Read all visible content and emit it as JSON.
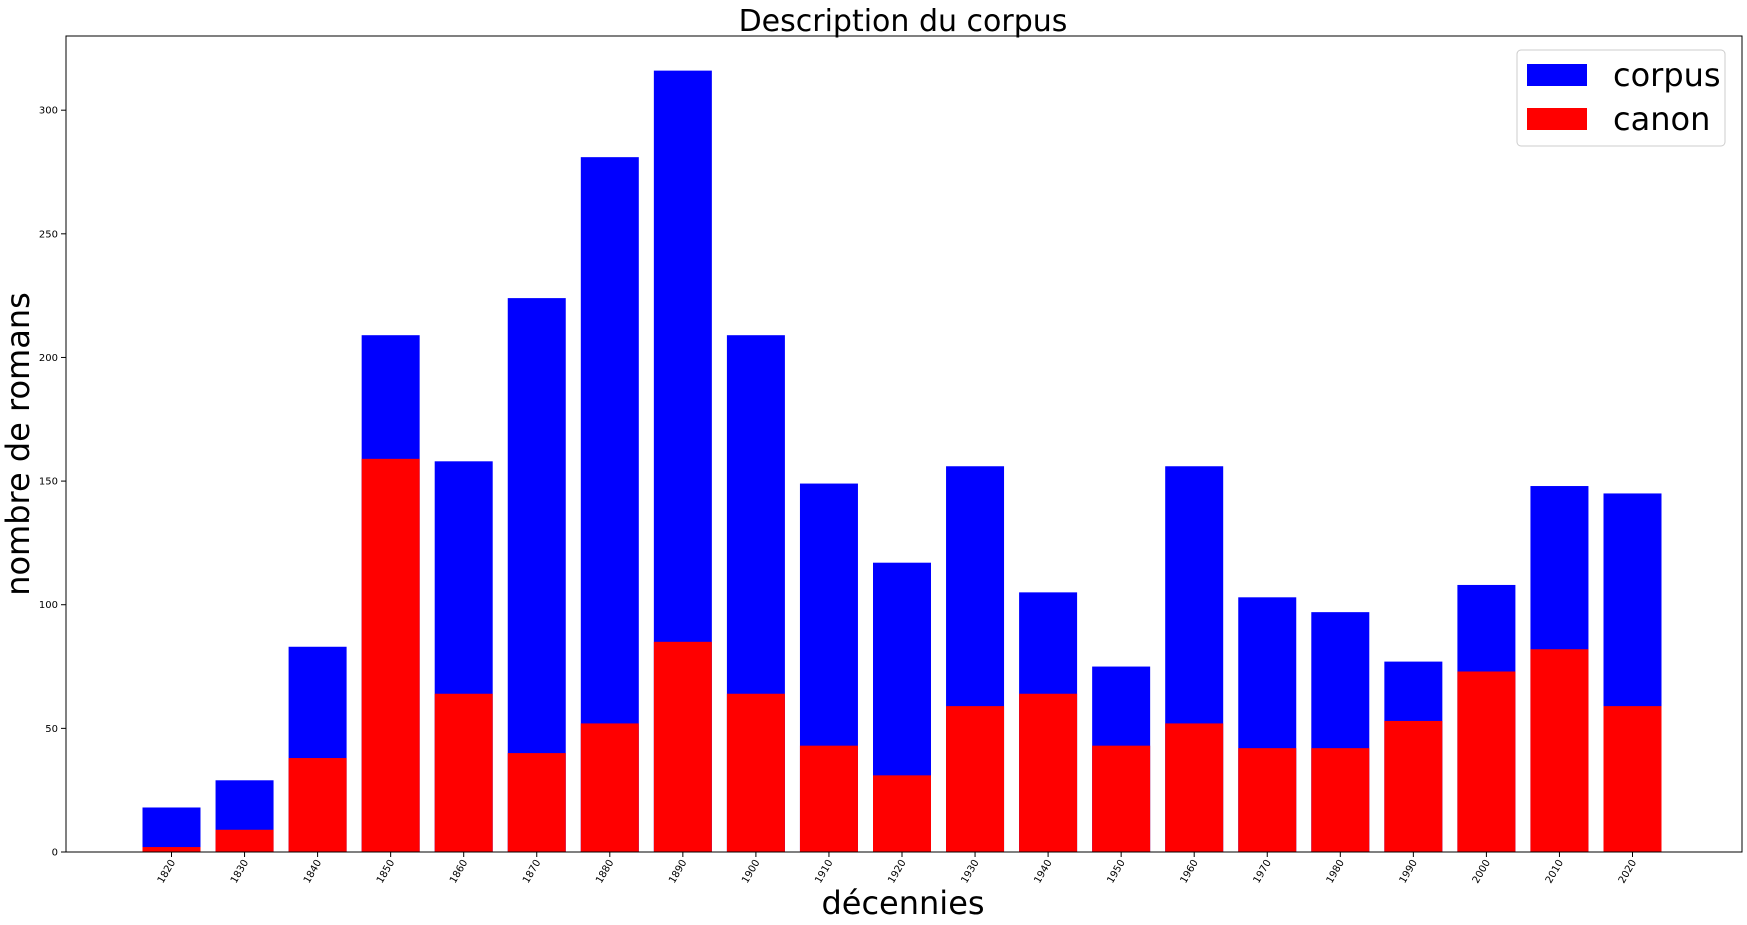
{
  "chart_data": {
    "type": "bar",
    "stacking": "overlay",
    "title": "Description du corpus",
    "xlabel": "décennies",
    "ylabel": "nombre de romans",
    "ylim": [
      0,
      330
    ],
    "yticks": [
      0,
      50,
      100,
      150,
      200,
      250,
      300
    ],
    "categories": [
      "1820",
      "1830",
      "1840",
      "1850",
      "1860",
      "1870",
      "1880",
      "1890",
      "1900",
      "1910",
      "1920",
      "1930",
      "1940",
      "1950",
      "1960",
      "1970",
      "1980",
      "1990",
      "2000",
      "2010",
      "2020"
    ],
    "series": [
      {
        "name": "corpus",
        "color": "#0000ff",
        "values": [
          18,
          29,
          83,
          209,
          158,
          224,
          281,
          316,
          209,
          149,
          117,
          156,
          105,
          75,
          156,
          103,
          97,
          77,
          108,
          148,
          145
        ]
      },
      {
        "name": "canon",
        "color": "#ff0000",
        "values": [
          2,
          9,
          38,
          159,
          64,
          40,
          52,
          85,
          64,
          43,
          31,
          59,
          64,
          43,
          52,
          42,
          42,
          53,
          73,
          82,
          59
        ]
      }
    ],
    "legend": {
      "position": "top-right"
    },
    "grid": false
  }
}
